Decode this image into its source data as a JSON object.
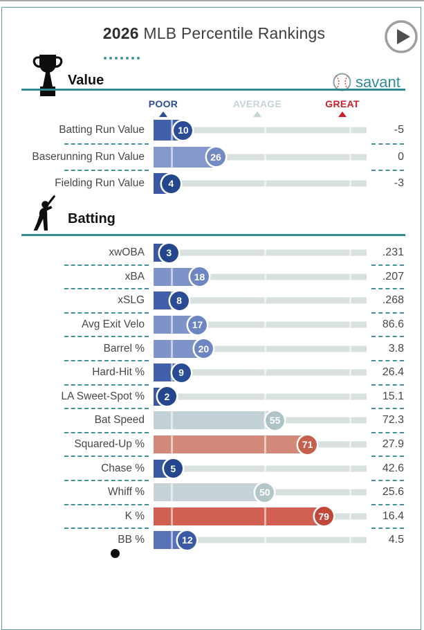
{
  "page": {
    "title_year": "2026",
    "title_rest": " MLB Percentile Rankings"
  },
  "brand": {
    "name": "savant"
  },
  "scale": {
    "poor": "POOR",
    "average": "AVERAGE",
    "great": "GREAT"
  },
  "colors": {
    "accent_teal": "#2f8b8f",
    "track": "#d8e1df",
    "poor": "#2c4d94",
    "average": "#c6d3d7",
    "great": "#c9202c"
  },
  "sections": [
    {
      "title": "Value",
      "icon": "trophy-icon",
      "rows": [
        {
          "label": "Batting Run Value",
          "percentile": 10,
          "value": "-5",
          "bar": "#4160aa",
          "circle": "#2a4c94"
        },
        {
          "label": "Baserunning Run Value",
          "percentile": 26,
          "value": "0",
          "bar": "#8398cb",
          "circle": "#7289c1"
        },
        {
          "label": "Fielding Run Value",
          "percentile": 4,
          "value": "-3",
          "bar": "#3a57a2",
          "circle": "#24468c"
        }
      ]
    },
    {
      "title": "Batting",
      "icon": "batter-icon",
      "rows": [
        {
          "label": "xwOBA",
          "percentile": 3,
          "value": ".231",
          "bar": "#3a57a2",
          "circle": "#24468c"
        },
        {
          "label": "xBA",
          "percentile": 18,
          "value": ".207",
          "bar": "#7e93c8",
          "circle": "#6d86c2"
        },
        {
          "label": "xSLG",
          "percentile": 8,
          "value": ".268",
          "bar": "#4160aa",
          "circle": "#2a4c94"
        },
        {
          "label": "Avg Exit Velo",
          "percentile": 17,
          "value": "86.6",
          "bar": "#7e93c8",
          "circle": "#6d86c2"
        },
        {
          "label": "Barrel %",
          "percentile": 20,
          "value": "3.8",
          "bar": "#7e93c8",
          "circle": "#6d86c2"
        },
        {
          "label": "Hard-Hit %",
          "percentile": 9,
          "value": "26.4",
          "bar": "#4160aa",
          "circle": "#2a4c94"
        },
        {
          "label": "LA Sweet-Spot %",
          "percentile": 2,
          "value": "15.1",
          "bar": "#3a57a2",
          "circle": "#24468c"
        },
        {
          "label": "Bat Speed",
          "percentile": 55,
          "value": "72.3",
          "bar": "#c2d1d5",
          "circle": "#aec3c8"
        },
        {
          "label": "Squared-Up %",
          "percentile": 71,
          "value": "27.9",
          "bar": "#d2897a",
          "circle": "#c4604d"
        },
        {
          "label": "Chase %",
          "percentile": 5,
          "value": "42.6",
          "bar": "#3a57a2",
          "circle": "#24468c"
        },
        {
          "label": "Whiff %",
          "percentile": 50,
          "value": "25.6",
          "bar": "#c6d3d6",
          "circle": "#b2c5c9"
        },
        {
          "label": "K %",
          "percentile": 79,
          "value": "16.4",
          "bar": "#d26052",
          "circle": "#c04739"
        },
        {
          "label": "BB %",
          "percentile": 12,
          "value": "4.5",
          "bar": "#5872b7",
          "circle": "#3c5aa4"
        }
      ]
    }
  ],
  "chart_data": [
    {
      "type": "bar",
      "title": "2026 MLB Percentile Rankings - Value",
      "categories": [
        "Batting Run Value",
        "Baserunning Run Value",
        "Fielding Run Value"
      ],
      "values": [
        10,
        26,
        4
      ],
      "annotations": [
        "-5",
        "0",
        "-3"
      ],
      "xlabel": "Percentile",
      "ylabel": "",
      "xlim": [
        0,
        100
      ],
      "legend": [
        "POOR",
        "AVERAGE",
        "GREAT"
      ],
      "markers": {
        "POOR": 5,
        "AVERAGE": 50,
        "GREAT": 95
      },
      "orientation": "horizontal",
      "grid": false
    },
    {
      "type": "bar",
      "title": "2026 MLB Percentile Rankings - Batting",
      "categories": [
        "xwOBA",
        "xBA",
        "xSLG",
        "Avg Exit Velo",
        "Barrel %",
        "Hard-Hit %",
        "LA Sweet-Spot %",
        "Bat Speed",
        "Squared-Up %",
        "Chase %",
        "Whiff %",
        "K %",
        "BB %"
      ],
      "values": [
        3,
        18,
        8,
        17,
        20,
        9,
        2,
        55,
        71,
        5,
        50,
        79,
        12
      ],
      "annotations": [
        ".231",
        ".207",
        ".268",
        "86.6",
        "3.8",
        "26.4",
        "15.1",
        "72.3",
        "27.9",
        "42.6",
        "25.6",
        "16.4",
        "4.5"
      ],
      "xlabel": "Percentile",
      "ylabel": "",
      "xlim": [
        0,
        100
      ],
      "legend": [
        "POOR",
        "AVERAGE",
        "GREAT"
      ],
      "markers": {
        "POOR": 5,
        "AVERAGE": 50,
        "GREAT": 95
      },
      "orientation": "horizontal",
      "grid": false
    }
  ]
}
